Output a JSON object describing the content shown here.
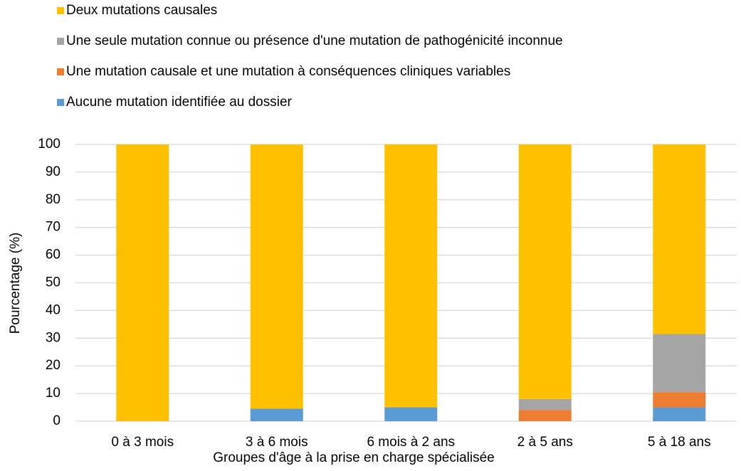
{
  "chart_data": {
    "type": "stacked_bar",
    "categories": [
      "0 à 3 mois",
      "3 à 6 mois",
      "6 mois à 2 ans",
      "2 à 5 ans",
      "5 à 18 ans"
    ],
    "series": [
      {
        "name": "Aucune mutation identifiée au dossier",
        "color": "#5B9BD5",
        "values": [
          0,
          4.5,
          5,
          0,
          5
        ]
      },
      {
        "name": "Une mutation causale et une mutation à conséquences cliniques variables",
        "color": "#ED7D31",
        "values": [
          0,
          0,
          0,
          4,
          5.5
        ]
      },
      {
        "name": "Une seule mutation connue ou présence d'une mutation de pathogénicité inconnue",
        "color": "#A5A5A5",
        "values": [
          0,
          0,
          0,
          4,
          21
        ]
      },
      {
        "name": "Deux mutations causales",
        "color": "#FFC000",
        "values": [
          100,
          95.5,
          95,
          92,
          68.5
        ]
      }
    ],
    "x_label": "Groupes d'âge à la prise en charge spécialisée",
    "y_label": "Pourcentage (%)",
    "ylim": [
      0,
      100
    ],
    "yticks": [
      0,
      10,
      20,
      30,
      40,
      50,
      60,
      70,
      80,
      90,
      100
    ],
    "grid": true,
    "legend": "top"
  }
}
